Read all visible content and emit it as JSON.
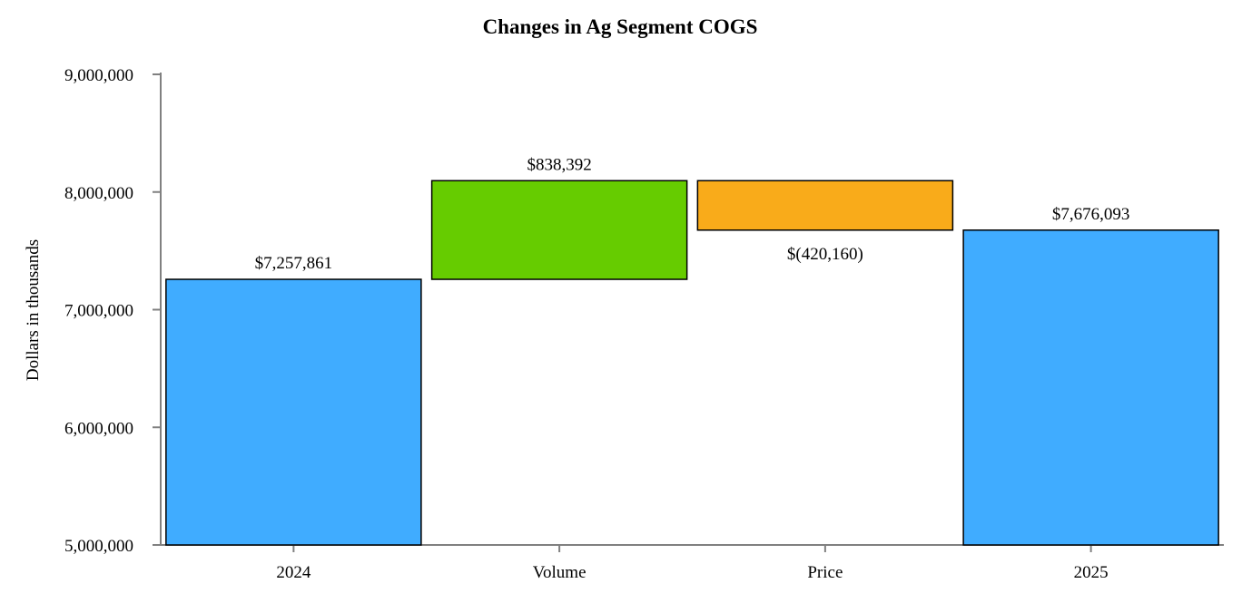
{
  "chart_data": {
    "type": "waterfall",
    "title": "Changes in Ag Segment COGS",
    "ylabel": "Dollars in thousands",
    "xlabel": "",
    "ylim": [
      5000000,
      9000000
    ],
    "yticks": [
      5000000,
      6000000,
      7000000,
      8000000,
      9000000
    ],
    "ytick_labels": [
      "5,000,000",
      "6,000,000",
      "7,000,000",
      "8,000,000",
      "9,000,000"
    ],
    "categories": [
      "2024",
      "Volume",
      "Price",
      "2025"
    ],
    "bars": [
      {
        "category": "2024",
        "kind": "total",
        "start": 5000000,
        "end": 7257861,
        "label": "$7,257,861",
        "color": "#40acff"
      },
      {
        "category": "Volume",
        "kind": "increase",
        "start": 7257861,
        "end": 8096253,
        "label": "$838,392",
        "color": "#66cc00"
      },
      {
        "category": "Price",
        "kind": "decrease",
        "start": 8096253,
        "end": 7676093,
        "label": "$(420,160)",
        "color": "#f9ab1a"
      },
      {
        "category": "2025",
        "kind": "total",
        "start": 5000000,
        "end": 7676093,
        "label": "$7,676,093",
        "color": "#40acff"
      }
    ],
    "grid": false,
    "legend": "none"
  }
}
